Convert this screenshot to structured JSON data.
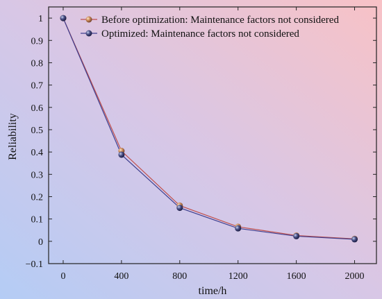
{
  "chart_data": {
    "type": "line",
    "x": [
      0,
      400,
      800,
      1200,
      1600,
      2000
    ],
    "series": [
      {
        "name": "Before optimization: Maintenance factors not considered",
        "values": [
          1.0,
          0.405,
          0.16,
          0.065,
          0.026,
          0.011
        ],
        "color": "#c0504d"
      },
      {
        "name": "Optimized: Maintenance factors not considered",
        "values": [
          1.0,
          0.388,
          0.15,
          0.058,
          0.023,
          0.009
        ],
        "color": "#3f3f8f"
      }
    ],
    "xlabel": "time/h",
    "ylabel": "Reliability",
    "xlim": [
      -100,
      2150
    ],
    "ylim": [
      -0.1,
      1.05
    ],
    "xticks": [
      "0",
      "400",
      "800",
      "1200",
      "1600",
      "2000"
    ],
    "yticks": [
      "−0.1",
      "0",
      "0.1",
      "0.2",
      "0.3",
      "0.4",
      "0.5",
      "0.6",
      "0.7",
      "0.8",
      "0.9",
      "1"
    ],
    "ytick_values": [
      -0.1,
      0,
      0.1,
      0.2,
      0.3,
      0.4,
      0.5,
      0.6,
      0.7,
      0.8,
      0.9,
      1.0
    ],
    "legend": "top-right",
    "grid": false,
    "background_gradient": [
      "#b7cdf3",
      "#f7c3c8"
    ]
  }
}
